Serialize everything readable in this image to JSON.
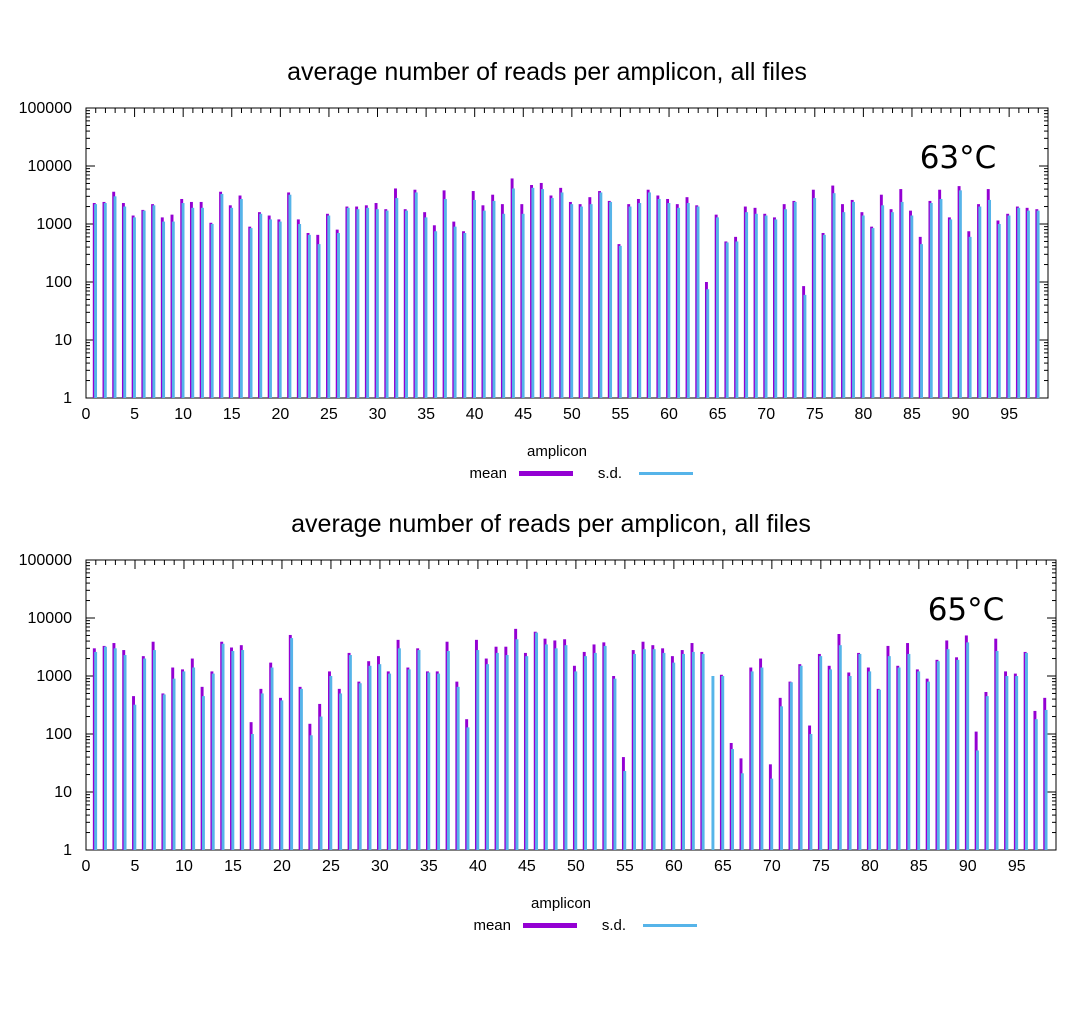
{
  "colors": {
    "mean": "#9400d3",
    "sd": "#56b4e9"
  },
  "chart_data": [
    {
      "type": "bar",
      "scale": "log",
      "title": "average number of reads per amplicon, all files",
      "annotation": "63°C",
      "xlabel": "amplicon",
      "ylabel": "",
      "xlim": [
        0,
        99
      ],
      "ylim": [
        1,
        100000
      ],
      "xticks": [
        0,
        5,
        10,
        15,
        20,
        25,
        30,
        35,
        40,
        45,
        50,
        55,
        60,
        65,
        70,
        75,
        80,
        85,
        90,
        95
      ],
      "yticks": [
        1,
        10,
        100,
        1000,
        10000,
        100000
      ],
      "legend_position": "bottom-center",
      "series": [
        {
          "name": "mean",
          "values": [
            2300,
            2400,
            3600,
            2300,
            1400,
            1750,
            2200,
            1300,
            1450,
            2700,
            2400,
            2400,
            1050,
            3600,
            2100,
            3100,
            900,
            1600,
            1400,
            1200,
            3500,
            1200,
            700,
            650,
            1500,
            800,
            2000,
            2000,
            2100,
            2300,
            1800,
            4100,
            1800,
            3900,
            1600,
            950,
            3800,
            1100,
            750,
            3700,
            2100,
            3200,
            2200,
            6100,
            2200,
            4700,
            5100,
            3100,
            4200,
            2400,
            2200,
            2900,
            3700,
            2500,
            450,
            2200,
            2700,
            3900,
            3100,
            2700,
            2200,
            2900,
            2100,
            100,
            1450,
            500,
            600,
            2000,
            1900,
            1500,
            1300,
            2200,
            2500,
            85,
            3900,
            700,
            4600,
            2200,
            2600,
            1600,
            900,
            3200,
            1800,
            4000,
            1700,
            600,
            2500,
            3900,
            1300,
            4500,
            750,
            2200,
            4000,
            1150,
            1500,
            2000,
            1900,
            1800
          ],
          "sd": [
            2200,
            2300,
            3000,
            2000,
            1300,
            1700,
            2100,
            1100,
            1100,
            2300,
            1900,
            1900,
            1000,
            3300,
            1900,
            2700,
            850,
            1500,
            1200,
            1100,
            3200,
            1000,
            650,
            450,
            1400,
            700,
            1900,
            1800,
            1900,
            1800,
            1700,
            2800,
            1700,
            3500,
            1300,
            750,
            2700,
            900,
            700,
            2600,
            1700,
            2500,
            1500,
            4100,
            1500,
            4200,
            4000,
            2800,
            3500,
            2200,
            2000,
            2200,
            3500,
            2400,
            420,
            2000,
            2300,
            3500,
            2700,
            2300,
            1900,
            2300,
            2000,
            75,
            1300,
            480,
            500,
            1600,
            1500,
            1400,
            1200,
            1800,
            2400,
            60,
            2800,
            650,
            3400,
            1600,
            2400,
            1400,
            850,
            2100,
            1600,
            2400,
            1400,
            450,
            2300,
            2700,
            1200,
            3800,
            600,
            2000,
            2600,
            1000,
            1400,
            1900,
            1700,
            1700
          ],
          "sd_note": null
        },
        {
          "name": "s.d.",
          "values": null
        }
      ]
    },
    {
      "type": "bar",
      "scale": "log",
      "title": "average number of reads per amplicon, all files",
      "annotation": "65°C",
      "xlabel": "amplicon",
      "ylabel": "",
      "xlim": [
        0,
        99
      ],
      "ylim": [
        1,
        100000
      ],
      "xticks": [
        0,
        5,
        10,
        15,
        20,
        25,
        30,
        35,
        40,
        45,
        50,
        55,
        60,
        65,
        70,
        75,
        80,
        85,
        90,
        95
      ],
      "yticks": [
        1,
        10,
        100,
        1000,
        10000,
        100000
      ],
      "legend_position": "bottom-center",
      "series": [
        {
          "name": "mean",
          "values": [
            3000,
            3300,
            3700,
            2800,
            450,
            2200,
            3900,
            500,
            1400,
            1300,
            2000,
            650,
            1200,
            3900,
            3100,
            3400,
            160,
            600,
            1700,
            420,
            5100,
            650,
            150,
            330,
            1200,
            600,
            2500,
            800,
            1800,
            2200,
            1200,
            4200,
            1400,
            3000,
            1200,
            1200,
            3900,
            800,
            180,
            4200,
            2000,
            3200,
            3200,
            6500,
            2500,
            5800,
            4400,
            4100,
            4300,
            1500,
            2600,
            3500,
            3800,
            1000,
            40,
            2800,
            3900,
            3400,
            3000,
            2200,
            2800,
            3700,
            2600,
            0,
            1050,
            70,
            38,
            1400,
            2000,
            30,
            420,
            800,
            1600,
            140,
            2400,
            1500,
            5300,
            1150,
            2500,
            1400,
            600,
            3300,
            1500,
            3700,
            1300,
            900,
            1900,
            4100,
            2100,
            5000,
            110,
            530,
            4400,
            1200,
            1100,
            2600,
            250,
            420
          ],
          "sd": [
            2600,
            3200,
            3000,
            2300,
            320,
            2000,
            2800,
            480,
            900,
            1200,
            1400,
            450,
            1100,
            3600,
            2700,
            2800,
            100,
            500,
            1400,
            380,
            4500,
            600,
            95,
            200,
            1000,
            500,
            2300,
            750,
            1500,
            1600,
            1100,
            3000,
            1300,
            2800,
            1150,
            1100,
            2700,
            650,
            130,
            2800,
            1600,
            2500,
            2300,
            4300,
            2200,
            5600,
            3500,
            3000,
            3400,
            1200,
            2200,
            2500,
            3300,
            900,
            23,
            2400,
            2900,
            2900,
            2500,
            1700,
            2400,
            2600,
            2400,
            1000,
            1000,
            55,
            21,
            1200,
            1400,
            17,
            300,
            780,
            1500,
            100,
            2200,
            1300,
            3400,
            1000,
            2400,
            1200,
            580,
            2200,
            1400,
            2400,
            1200,
            800,
            1800,
            2900,
            1900,
            3800,
            52,
            450,
            2700,
            1000,
            1000,
            2500,
            180,
            260
          ]
        },
        {
          "name": "s.d.",
          "values": null
        }
      ]
    }
  ],
  "legend": {
    "mean_label": "mean",
    "sd_label": "s.d."
  }
}
